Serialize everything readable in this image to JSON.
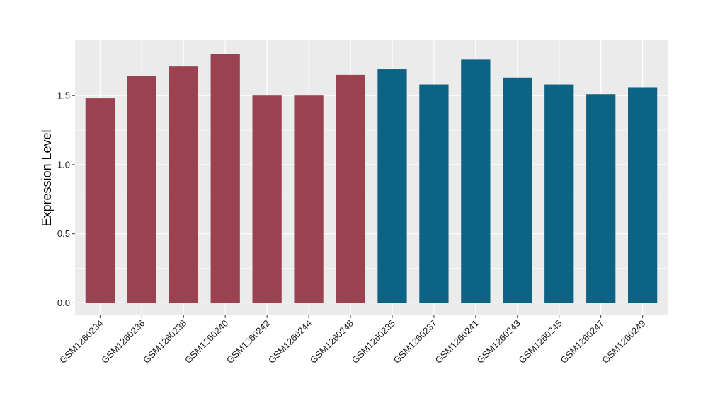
{
  "chart_data": {
    "type": "bar",
    "ylabel": "Expression Level",
    "xlabel": "",
    "title": "",
    "ylim": [
      -0.09,
      1.9
    ],
    "yticks": [
      0.0,
      0.5,
      1.0,
      1.5
    ],
    "ytick_labels": [
      "0.0",
      "0.5",
      "1.0",
      "1.5"
    ],
    "grid": true,
    "legend": "none",
    "categories": [
      "GSM1260234",
      "GSM1260236",
      "GSM1260238",
      "GSM1260240",
      "GSM1260242",
      "GSM1260244",
      "GSM1260248",
      "GSM1260235",
      "GSM1260237",
      "GSM1260241",
      "GSM1260243",
      "GSM1260245",
      "GSM1260247",
      "GSM1260249"
    ],
    "values": [
      1.48,
      1.64,
      1.71,
      1.8,
      1.5,
      1.5,
      1.65,
      1.69,
      1.58,
      1.76,
      1.63,
      1.58,
      1.51,
      1.56
    ],
    "bar_colors": [
      "#9a4250",
      "#9a4250",
      "#9a4250",
      "#9a4250",
      "#9a4250",
      "#9a4250",
      "#9a4250",
      "#0d6384",
      "#0d6384",
      "#0d6384",
      "#0d6384",
      "#0d6384",
      "#0d6384",
      "#0d6384"
    ],
    "panel_background": "#ebebeb",
    "grid_color": "#ffffff"
  }
}
